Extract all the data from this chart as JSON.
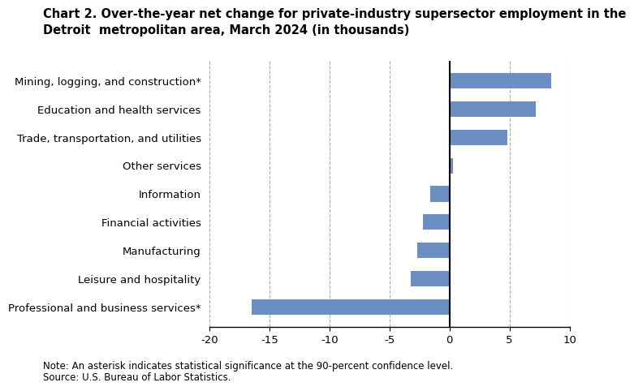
{
  "title_line1": "Chart 2. Over-the-year net change for private-industry supersector employment in the",
  "title_line2": "Detroit  metropolitan area, March 2024 (in thousands)",
  "categories": [
    "Professional and business services*",
    "Leisure and hospitality",
    "Manufacturing",
    "Financial activities",
    "Information",
    "Other services",
    "Trade, transportation, and utilities",
    "Education and health services",
    "Mining, logging, and construction*"
  ],
  "values": [
    -16.5,
    -3.2,
    -2.7,
    -2.2,
    -1.6,
    0.3,
    4.8,
    7.2,
    8.5
  ],
  "bar_color": "#6b8fc2",
  "xlim": [
    -20,
    10
  ],
  "xticks": [
    -20,
    -15,
    -10,
    -5,
    0,
    5,
    10
  ],
  "grid_color": "#aaaaaa",
  "note_line1": "Note: An asterisk indicates statistical significance at the 90-percent confidence level.",
  "note_line2": "Source: U.S. Bureau of Labor Statistics.",
  "title_fontsize": 10.5,
  "tick_fontsize": 9.5,
  "note_fontsize": 8.5,
  "bar_height": 0.55,
  "background_color": "#ffffff"
}
